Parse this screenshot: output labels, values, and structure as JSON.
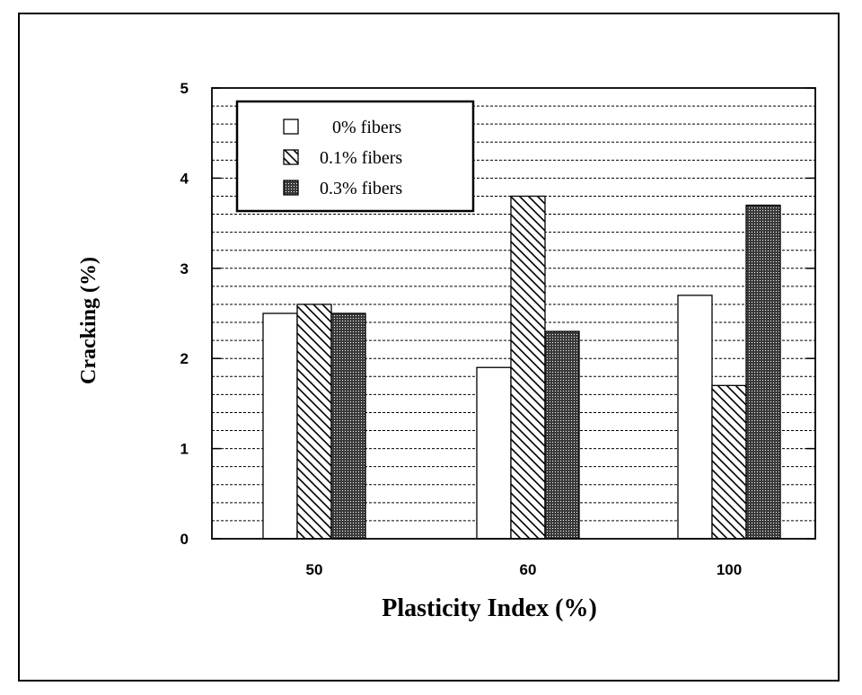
{
  "chart_data": {
    "type": "bar",
    "xlabel": "Plasticity Index (%)",
    "ylabel": "Cracking (%)",
    "categories": [
      "50",
      "60",
      "100"
    ],
    "ylim": [
      0,
      5
    ],
    "yticks": [
      "0",
      "1",
      "2",
      "3",
      "4",
      "5"
    ],
    "grid": true,
    "legend_position": "top-left",
    "series": [
      {
        "name": "0% fibers",
        "values": [
          2.5,
          1.9,
          2.7
        ],
        "pattern": "white"
      },
      {
        "name": "0.1% fibers",
        "values": [
          2.6,
          3.8,
          1.7
        ],
        "pattern": "diagonal-hatch"
      },
      {
        "name": "0.3% fibers",
        "values": [
          2.5,
          2.3,
          3.7
        ],
        "pattern": "dense-dots"
      }
    ]
  }
}
